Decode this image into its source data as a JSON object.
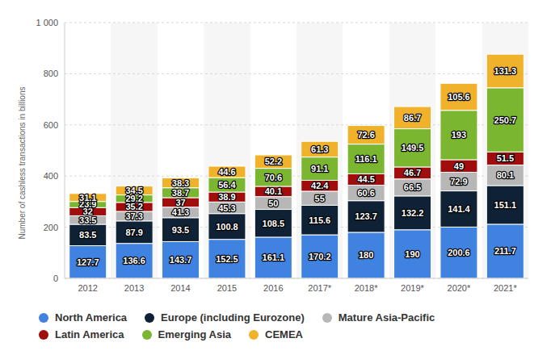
{
  "chart_data": {
    "type": "bar",
    "stacked": true,
    "data_labels": true,
    "grid": true,
    "legend": "bottom",
    "y_label": "Number of cashless transactions in billions",
    "categories": [
      "2012",
      "2013",
      "2014",
      "2015",
      "2016",
      "2017*",
      "2018*",
      "2019*",
      "2020*",
      "2021*"
    ],
    "ylim": [
      0,
      1000
    ],
    "yticks": [
      0,
      200,
      400,
      600,
      800,
      {
        "value": 1000,
        "label": "1 000"
      }
    ],
    "series": [
      {
        "name": "North America",
        "color": "#3f82e0",
        "values": [
          127.7,
          136.6,
          143.7,
          152.5,
          161.1,
          170.2,
          180,
          190,
          200.6,
          211.7
        ]
      },
      {
        "name": "Europe (including Eurozone)",
        "color": "#0f2235",
        "values": [
          83.5,
          87.9,
          93.5,
          100.8,
          108.5,
          115.6,
          123.7,
          132.2,
          141.4,
          151.1
        ]
      },
      {
        "name": "Mature Asia-Pacific",
        "color": "#b7b7b7",
        "values": [
          33.5,
          37.3,
          41.3,
          45.3,
          50,
          55,
          60.6,
          66.5,
          72.9,
          80.1
        ]
      },
      {
        "name": "Latin America",
        "color": "#a10c0c",
        "values": [
          32,
          35.2,
          37,
          38.9,
          40.1,
          42.4,
          44.5,
          46.7,
          49,
          51.5
        ]
      },
      {
        "name": "Emerging Asia",
        "color": "#7ab630",
        "values": [
          23.9,
          29.2,
          38.7,
          56.4,
          70.6,
          91.1,
          116.1,
          149.5,
          193,
          250.7
        ]
      },
      {
        "name": "CEMEA",
        "color": "#efb22a",
        "values": [
          31.1,
          34.5,
          38.3,
          44.6,
          52.2,
          61.3,
          72.6,
          86.7,
          105.6,
          131.3
        ]
      }
    ]
  }
}
